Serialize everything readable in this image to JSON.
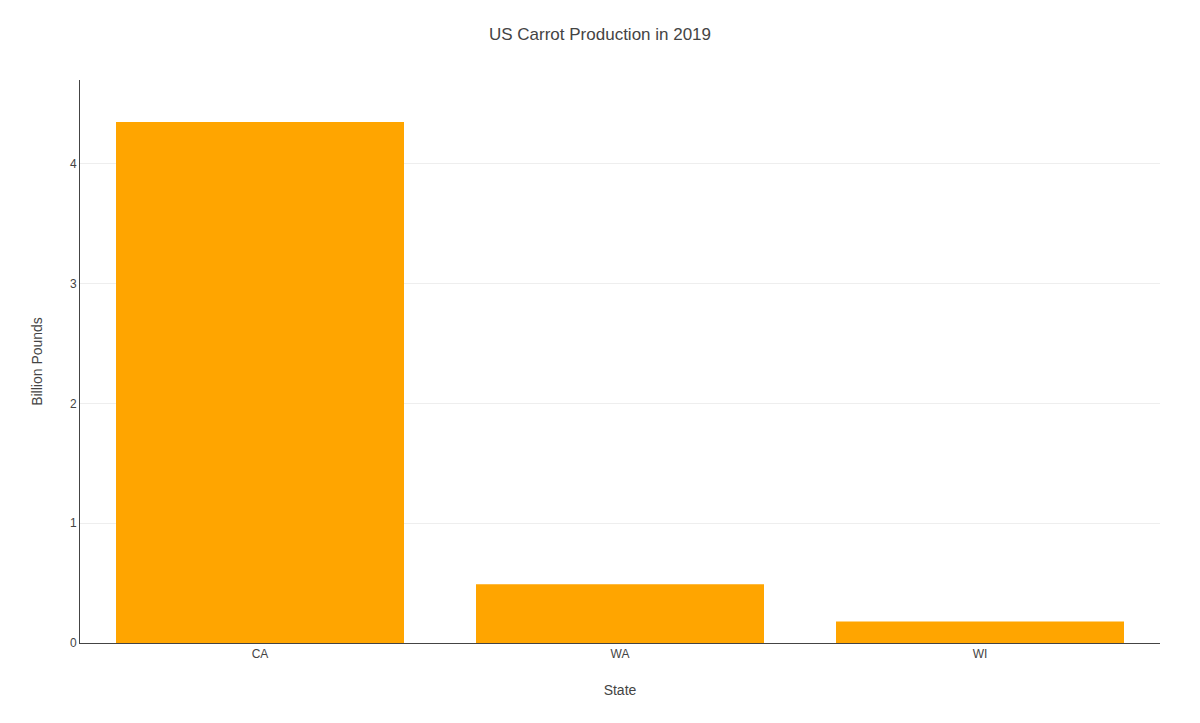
{
  "chart_data": {
    "type": "bar",
    "title": "US Carrot Production in 2019",
    "xlabel": "State",
    "ylabel": "Billion Pounds",
    "categories": [
      "CA",
      "WA",
      "WI"
    ],
    "values": [
      4.35,
      0.49,
      0.18
    ],
    "color": "#FFA500",
    "ylim": [
      0,
      4.7
    ],
    "yticks": [
      0,
      1,
      2,
      3,
      4
    ],
    "grid": true
  }
}
